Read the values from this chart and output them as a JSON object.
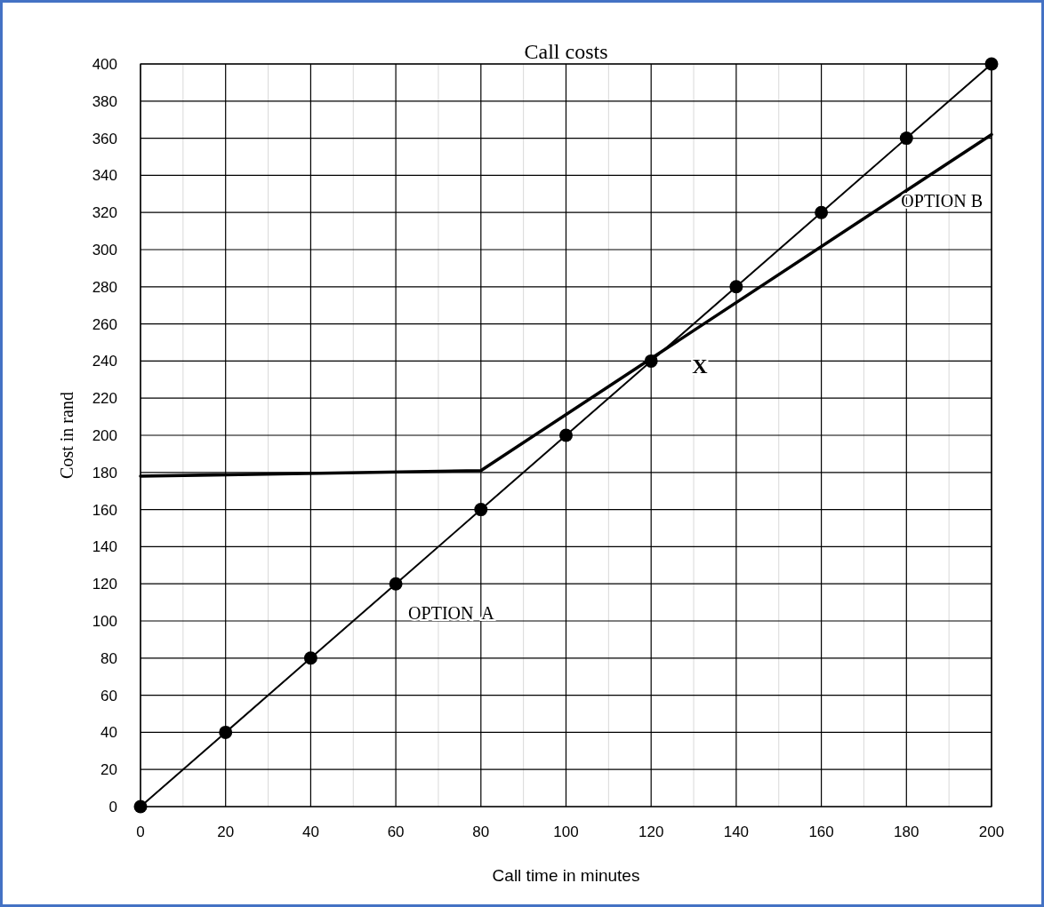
{
  "chart_data": {
    "type": "line",
    "title": "Call costs",
    "xlabel": "Call time in minutes",
    "ylabel": "Cost in rand",
    "xlim": [
      0,
      200
    ],
    "ylim": [
      0,
      400
    ],
    "xticks": [
      0,
      20,
      40,
      60,
      80,
      100,
      120,
      140,
      160,
      180,
      200
    ],
    "yticks": [
      0,
      20,
      40,
      60,
      80,
      100,
      120,
      140,
      160,
      180,
      200,
      220,
      240,
      260,
      280,
      300,
      320,
      340,
      360,
      380,
      400
    ],
    "grid": true,
    "series": [
      {
        "name": "OPTION  A",
        "color": "#000000",
        "marker": "circle",
        "x": [
          0,
          20,
          40,
          60,
          80,
          100,
          120,
          140,
          160,
          180,
          200
        ],
        "values": [
          0,
          40,
          80,
          120,
          160,
          200,
          240,
          280,
          320,
          360,
          400
        ]
      },
      {
        "name": "OPTION B",
        "color": "#000000",
        "marker": "none",
        "x": [
          0,
          80,
          200
        ],
        "values": [
          178,
          181,
          362
        ]
      }
    ],
    "annotations": [
      "X"
    ]
  }
}
